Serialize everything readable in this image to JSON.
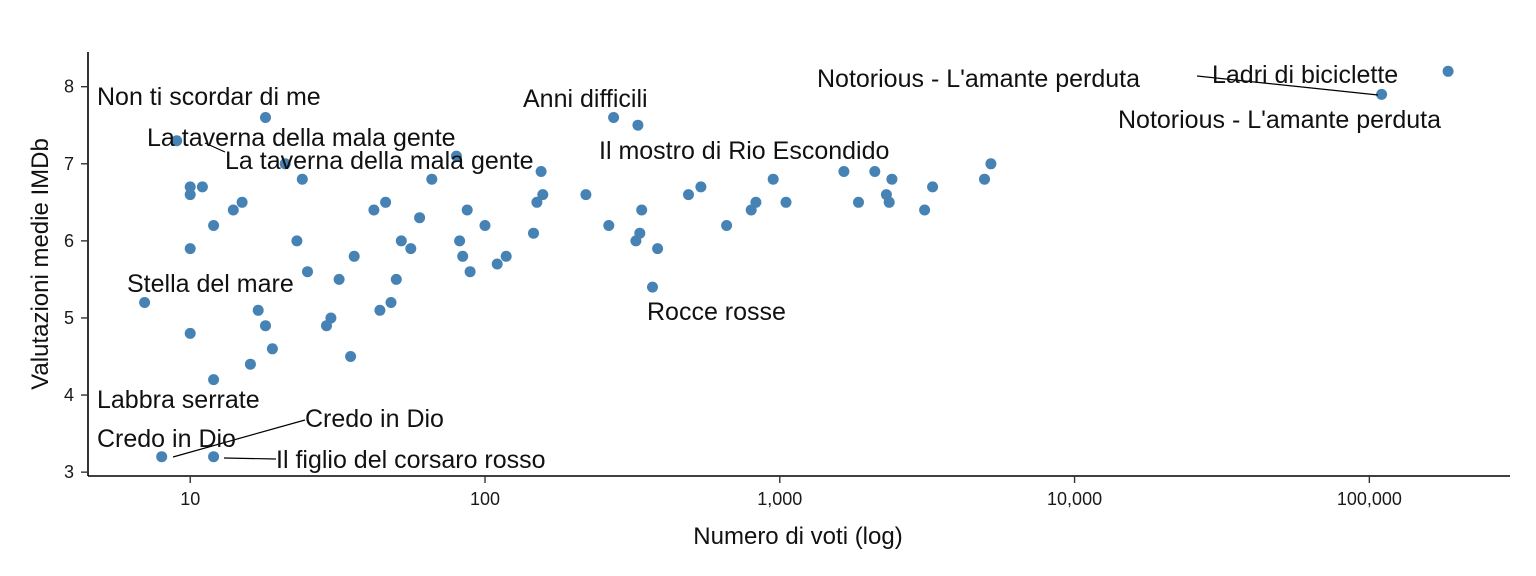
{
  "chart_data": {
    "type": "scatter",
    "title": "",
    "xlabel": "Numero di voti (log)",
    "ylabel": "Valutazioni medie IMDb",
    "x_scale": "log10",
    "xlim": [
      4.5,
      300000
    ],
    "ylim": [
      2.95,
      8.45
    ],
    "x_ticks": [
      10,
      100,
      1000,
      10000,
      100000
    ],
    "x_tick_labels": [
      "10",
      "100",
      "1,000",
      "10,000",
      "100,000"
    ],
    "y_ticks": [
      3,
      4,
      5,
      6,
      7,
      8
    ],
    "y_tick_labels": [
      "3",
      "4",
      "5",
      "6",
      "7",
      "8"
    ],
    "grid": false,
    "legend": "none",
    "point_color": "#4682B4",
    "points": [
      {
        "x": 9,
        "y": 7.3
      },
      {
        "x": 10,
        "y": 6.7
      },
      {
        "x": 10,
        "y": 6.6
      },
      {
        "x": 11,
        "y": 6.7
      },
      {
        "x": 10,
        "y": 5.9
      },
      {
        "x": 12,
        "y": 6.2
      },
      {
        "x": 14,
        "y": 6.4
      },
      {
        "x": 15,
        "y": 6.5
      },
      {
        "x": 18,
        "y": 7.6
      },
      {
        "x": 21,
        "y": 7.0
      },
      {
        "x": 24,
        "y": 6.8
      },
      {
        "x": 23,
        "y": 6.0
      },
      {
        "x": 25,
        "y": 5.6
      },
      {
        "x": 7,
        "y": 5.2
      },
      {
        "x": 10,
        "y": 4.8
      },
      {
        "x": 17,
        "y": 5.1
      },
      {
        "x": 18,
        "y": 4.9
      },
      {
        "x": 19,
        "y": 4.6
      },
      {
        "x": 16,
        "y": 4.4
      },
      {
        "x": 12,
        "y": 4.2
      },
      {
        "x": 8,
        "y": 3.2
      },
      {
        "x": 12,
        "y": 3.2
      },
      {
        "x": 29,
        "y": 4.9
      },
      {
        "x": 30,
        "y": 5.0
      },
      {
        "x": 32,
        "y": 5.5
      },
      {
        "x": 35,
        "y": 4.5
      },
      {
        "x": 36,
        "y": 5.8
      },
      {
        "x": 42,
        "y": 6.4
      },
      {
        "x": 46,
        "y": 6.5
      },
      {
        "x": 44,
        "y": 5.1
      },
      {
        "x": 48,
        "y": 5.2
      },
      {
        "x": 50,
        "y": 5.5
      },
      {
        "x": 52,
        "y": 6.0
      },
      {
        "x": 56,
        "y": 5.9
      },
      {
        "x": 60,
        "y": 6.3
      },
      {
        "x": 66,
        "y": 6.8
      },
      {
        "x": 80,
        "y": 7.1
      },
      {
        "x": 82,
        "y": 6.0
      },
      {
        "x": 84,
        "y": 5.8
      },
      {
        "x": 87,
        "y": 6.4
      },
      {
        "x": 89,
        "y": 5.6
      },
      {
        "x": 100,
        "y": 6.2
      },
      {
        "x": 110,
        "y": 5.7
      },
      {
        "x": 118,
        "y": 5.8
      },
      {
        "x": 146,
        "y": 6.1
      },
      {
        "x": 150,
        "y": 6.5
      },
      {
        "x": 157,
        "y": 6.6
      },
      {
        "x": 155,
        "y": 6.9
      },
      {
        "x": 220,
        "y": 6.6
      },
      {
        "x": 263,
        "y": 6.2
      },
      {
        "x": 273,
        "y": 7.6
      },
      {
        "x": 330,
        "y": 7.5
      },
      {
        "x": 325,
        "y": 6.0
      },
      {
        "x": 335,
        "y": 6.1
      },
      {
        "x": 340,
        "y": 6.4
      },
      {
        "x": 370,
        "y": 5.4
      },
      {
        "x": 385,
        "y": 5.9
      },
      {
        "x": 490,
        "y": 6.6
      },
      {
        "x": 540,
        "y": 6.7
      },
      {
        "x": 660,
        "y": 6.2
      },
      {
        "x": 800,
        "y": 6.4
      },
      {
        "x": 830,
        "y": 6.5
      },
      {
        "x": 950,
        "y": 6.8
      },
      {
        "x": 1050,
        "y": 6.5
      },
      {
        "x": 1650,
        "y": 6.9
      },
      {
        "x": 1850,
        "y": 6.5
      },
      {
        "x": 2100,
        "y": 6.9
      },
      {
        "x": 2300,
        "y": 6.6
      },
      {
        "x": 2350,
        "y": 6.5
      },
      {
        "x": 2400,
        "y": 6.8
      },
      {
        "x": 3100,
        "y": 6.4
      },
      {
        "x": 3300,
        "y": 6.7
      },
      {
        "x": 4950,
        "y": 6.8
      },
      {
        "x": 5200,
        "y": 7.0
      },
      {
        "x": 110000,
        "y": 7.9
      },
      {
        "x": 185000,
        "y": 8.2
      }
    ],
    "annotations": [
      {
        "text": "Non ti scordar di me",
        "x": 18,
        "y": 7.6
      },
      {
        "text": "La taverna della mala gente",
        "x": 9,
        "y": 7.3
      },
      {
        "text": "La taverna della mala gente",
        "x": 80,
        "y": 7.1
      },
      {
        "text": "Anni difficili",
        "x": 273,
        "y": 7.6
      },
      {
        "text": "Il mostro di Rio Escondido",
        "x": 330,
        "y": 7.5
      },
      {
        "text": "Stella del mare",
        "x": 7,
        "y": 5.2
      },
      {
        "text": "Rocce rosse",
        "x": 370,
        "y": 5.4
      },
      {
        "text": "Labbra serrate",
        "x": 12,
        "y": 4.2
      },
      {
        "text": "Credo in Dio",
        "x": 8,
        "y": 3.2
      },
      {
        "text": "Credo in Dio",
        "x": 8,
        "y": 3.2
      },
      {
        "text": "Il figlio del corsaro rosso",
        "x": 12,
        "y": 3.2
      },
      {
        "text": "Notorious - L'amante perduta",
        "x": 110000,
        "y": 7.9
      },
      {
        "text": "Notorious - L'amante perduta",
        "x": 110000,
        "y": 7.9
      },
      {
        "text": "Ladri di biciclette",
        "x": 185000,
        "y": 8.2
      }
    ]
  }
}
